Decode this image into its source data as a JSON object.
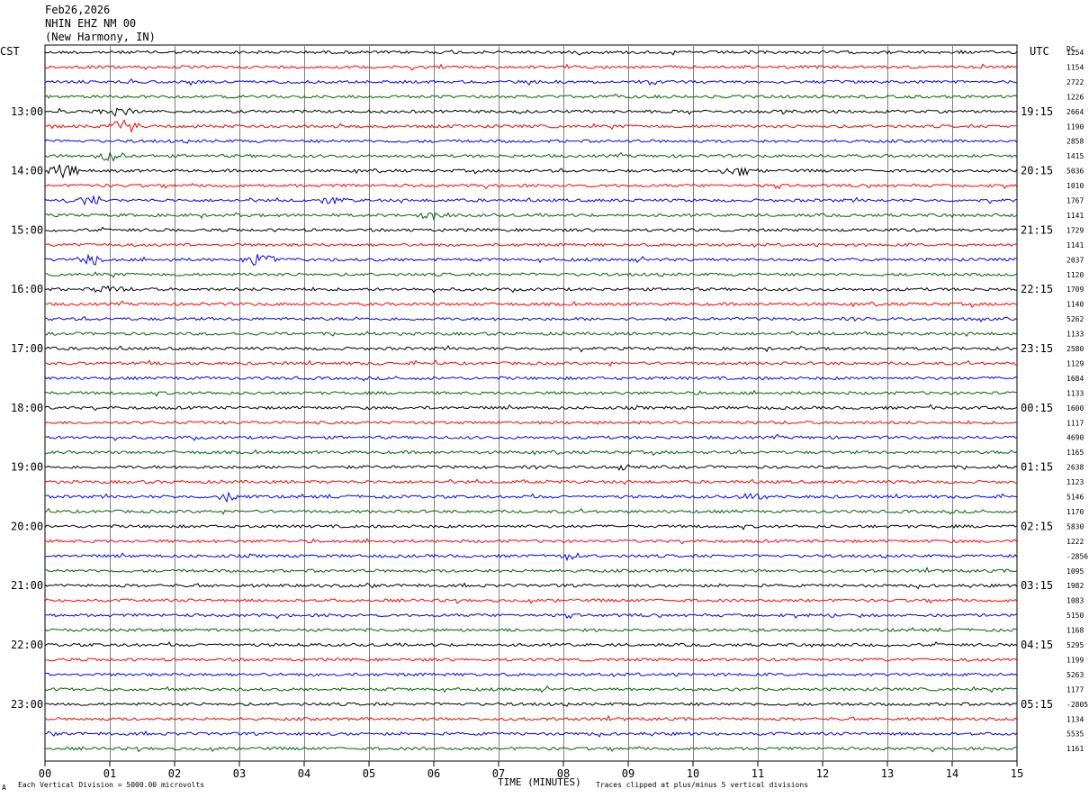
{
  "header": {
    "date": "Feb26,2026",
    "station": "NHIN EHZ NM 00",
    "location": "(New Harmony, IN)"
  },
  "left_tz": "CST",
  "right_tz": "UTC",
  "dc_label": "DC",
  "footer": {
    "scale_note": "Each Vertical Division = 5000.00 microvolts",
    "clip_note": "Traces clipped at plus/minus 5 vertical divisions",
    "corner_mark": "A"
  },
  "colors": [
    "#000000",
    "#ff0000",
    "#0000ff",
    "#006400"
  ],
  "chart_data": {
    "type": "line",
    "title": "NHIN EHZ NM 00 (New Harmony, IN)",
    "xlabel": "TIME (MINUTES)",
    "x_ticks": [
      "00",
      "01",
      "02",
      "03",
      "04",
      "05",
      "06",
      "07",
      "08",
      "09",
      "10",
      "11",
      "12",
      "13",
      "14",
      "15"
    ],
    "xlim": [
      0,
      15
    ],
    "traces_per_hour": 4,
    "left_hour_labels": [
      "13:00",
      "14:00",
      "15:00",
      "16:00",
      "17:00",
      "18:00",
      "19:00",
      "20:00",
      "21:00",
      "22:00",
      "23:00"
    ],
    "right_hour_labels": [
      "19:15",
      "20:15",
      "21:15",
      "22:15",
      "23:15",
      "00:15",
      "01:15",
      "02:15",
      "03:15",
      "04:15",
      "05:15"
    ],
    "dc_offsets": [
      "1254",
      "1154",
      "2722",
      "1226",
      "2664",
      "1190",
      "2858",
      "1415",
      "5036",
      "1010",
      "1767",
      "1141",
      "1729",
      "1141",
      "2037",
      "1120",
      "1709",
      "1140",
      "5262",
      "1133",
      "2580",
      "1129",
      "1684",
      "1133",
      "1600",
      "1117",
      "4690",
      "1165",
      "2638",
      "1123",
      "5146",
      "1170",
      "5830",
      "1222",
      "-2856",
      "1095",
      "1982",
      "1083",
      "5150",
      "1168",
      "5295",
      "1199",
      "5263",
      "1177",
      "-2805",
      "1134",
      "5535",
      "1161"
    ],
    "events": [
      {
        "trace": 4,
        "minute": 1.1,
        "amp": 0.8
      },
      {
        "trace": 5,
        "minute": 1.2,
        "amp": 1.0
      },
      {
        "trace": 7,
        "minute": 1.0,
        "amp": 0.9
      },
      {
        "trace": 8,
        "minute": 0.3,
        "amp": 1.2
      },
      {
        "trace": 8,
        "minute": 10.7,
        "amp": 0.8
      },
      {
        "trace": 10,
        "minute": 0.7,
        "amp": 1.0
      },
      {
        "trace": 10,
        "minute": 4.4,
        "amp": 0.9
      },
      {
        "trace": 11,
        "minute": 6.0,
        "amp": 0.6
      },
      {
        "trace": 14,
        "minute": 3.3,
        "amp": 1.3
      },
      {
        "trace": 14,
        "minute": 0.7,
        "amp": 0.8
      },
      {
        "trace": 16,
        "minute": 1.0,
        "amp": 0.8
      },
      {
        "trace": 28,
        "minute": 8.9,
        "amp": 0.6
      },
      {
        "trace": 30,
        "minute": 2.8,
        "amp": 0.7
      },
      {
        "trace": 30,
        "minute": 11.0,
        "amp": 0.6
      },
      {
        "trace": 34,
        "minute": 8.0,
        "amp": 0.6
      }
    ]
  }
}
